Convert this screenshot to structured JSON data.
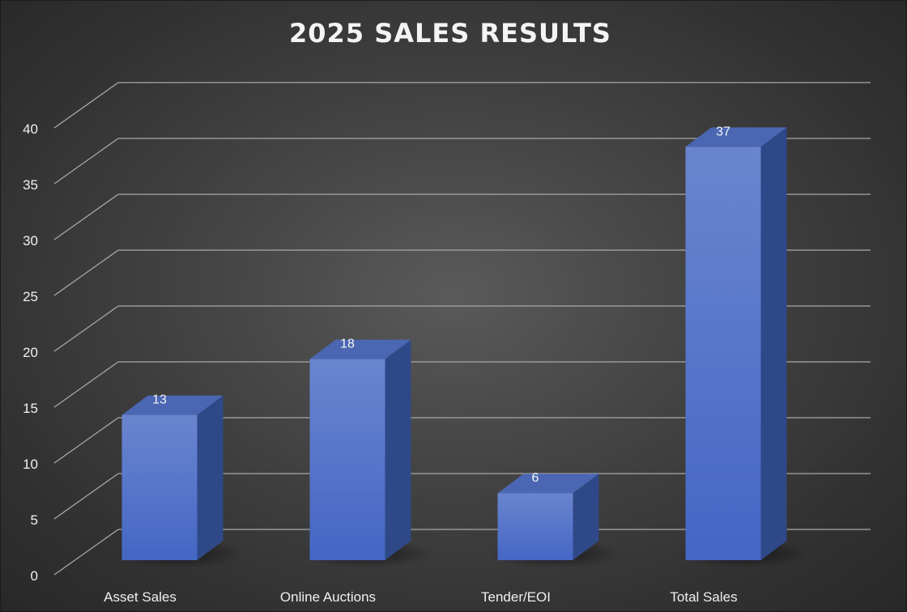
{
  "chart_data": {
    "type": "bar",
    "title": "2025 SALES RESULTS",
    "categories": [
      "Asset Sales",
      "Online Auctions",
      "Tender/EOI",
      "Total Sales"
    ],
    "values": [
      13,
      18,
      6,
      37
    ],
    "data_labels": [
      "13",
      "18",
      "6",
      "37"
    ],
    "ylim": [
      0,
      40
    ],
    "yticks": [
      0,
      5,
      10,
      15,
      20,
      25,
      30,
      35,
      40
    ],
    "ytick_labels": [
      "0",
      "5",
      "10",
      "15",
      "20",
      "25",
      "30",
      "35",
      "40"
    ],
    "xlabel": "",
    "ylabel": "",
    "grid": true,
    "legend": "none",
    "style": "3d-column",
    "colors": {
      "bar_front_top": "#6a85cf",
      "bar_front_bottom": "#4466c4",
      "bar_side": "#2f4887",
      "bar_top": "#4b67b3",
      "gridline": "#a9a9a9",
      "text": "#f0f0f0"
    }
  }
}
